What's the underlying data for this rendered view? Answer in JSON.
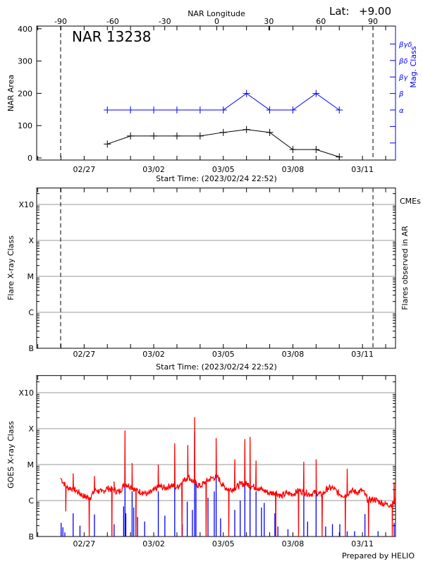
{
  "header": {
    "lat_label": "Lat:",
    "lat_value": "+9.00"
  },
  "footer": "Prepared by HELIO",
  "chart_data": [
    {
      "type": "line",
      "title": "NAR 13238",
      "xlabel": "Start Time: (2023/02/24 22:52)",
      "xlim": [
        "2023-02-24T22:52",
        "2023-03-12T10:30"
      ],
      "x_ticklabels": [
        "02/27",
        "03/02",
        "03/05",
        "03/08",
        "03/11"
      ],
      "top_axis": {
        "label": "NAR Longitude",
        "ticks": [
          "-90",
          "-60",
          "-30",
          "0",
          "30",
          "60",
          "90"
        ]
      },
      "limb_times": [
        "2023-02-25T23:40",
        "2023-03-11T10:52"
      ],
      "ylabel": "NAR Area",
      "ylim": [
        0,
        400
      ],
      "yticks": [
        "0",
        "100",
        "200",
        "300",
        "400"
      ],
      "y2label": "Mag. Class",
      "y2_ticklabels": [
        "",
        "",
        "α",
        "β",
        "βγ",
        "βδ",
        "βγδ"
      ],
      "x": [
        "2023-02-28T00:00",
        "2023-03-01T00:00",
        "2023-03-02T00:00",
        "2023-03-03T00:00",
        "2023-03-04T00:00",
        "2023-03-05T00:00",
        "2023-03-06T00:00",
        "2023-03-07T00:00",
        "2023-03-08T00:00",
        "2023-03-09T00:00",
        "2023-03-10T00:00"
      ],
      "series": [
        {
          "axis": "left",
          "color": "#000000",
          "values": [
            43,
            68,
            68,
            68,
            68,
            79,
            88,
            79,
            26,
            26,
            3
          ]
        },
        {
          "axis": "right",
          "color": "#0000ff",
          "values": [
            "α",
            "α",
            "α",
            "α",
            "α",
            "α",
            "β",
            "α",
            "α",
            "β",
            "α"
          ]
        }
      ],
      "grid": false
    },
    {
      "type": "scatter",
      "xlabel": "Start Time: (2023/02/24 22:52)",
      "xlim": [
        "2023-02-24T22:52",
        "2023-03-12T10:30"
      ],
      "x_ticklabels": [
        "02/27",
        "03/02",
        "03/05",
        "03/08",
        "03/11"
      ],
      "limb_times": [
        "2023-02-25T23:40",
        "2023-03-11T10:52"
      ],
      "ylabel": "Flare X-ray Class",
      "y2label": "Flares observed in AR",
      "annotation": "CMEs",
      "annotation_color": "#ff0000",
      "yscale": "log",
      "ylim": [
        1e-07,
        0.003
      ],
      "ytick_values": [
        1e-07,
        1e-06,
        1e-05,
        0.0001,
        0.001
      ],
      "yticks": [
        "B",
        "C",
        "M",
        "X",
        "X10"
      ],
      "flares": [],
      "grid": true
    },
    {
      "type": "line",
      "xlim": [
        "2023-02-24T22:52",
        "2023-03-12T10:30"
      ],
      "x_ticklabels": [
        "02/27",
        "03/02",
        "03/05",
        "03/08",
        "03/11"
      ],
      "ylabel": "GOES X-ray Class",
      "yscale": "log",
      "ylim": [
        1e-07,
        0.003
      ],
      "ytick_values": [
        1e-07,
        1e-06,
        1e-05,
        0.0001,
        0.001
      ],
      "yticks": [
        "B",
        "C",
        "M",
        "X",
        "X10"
      ],
      "grid": true,
      "series": [
        {
          "color": "#ff0000",
          "baseline": [
            [
              "2023-02-25T23:40",
              4.2e-06
            ],
            [
              "2023-02-26T06:00",
              2.3e-06
            ],
            [
              "2023-02-26T12:00",
              2.2e-06
            ],
            [
              "2023-02-26T18:00",
              1.7e-06
            ],
            [
              "2023-02-27T00:00",
              1.3e-06
            ],
            [
              "2023-02-27T06:00",
              1.2e-06
            ],
            [
              "2023-02-27T12:00",
              2e-06
            ],
            [
              "2023-02-27T18:00",
              1.7e-06
            ],
            [
              "2023-02-28T00:00",
              2.2e-06
            ],
            [
              "2023-02-28T06:00",
              2e-06
            ],
            [
              "2023-02-28T12:00",
              1.7e-06
            ],
            [
              "2023-02-28T18:00",
              2.9e-06
            ],
            [
              "2023-03-01T00:00",
              2.5e-06
            ],
            [
              "2023-03-01T06:00",
              1.9e-06
            ],
            [
              "2023-03-01T12:00",
              1.7e-06
            ],
            [
              "2023-03-01T18:00",
              1.5e-06
            ],
            [
              "2023-03-02T00:00",
              1.9e-06
            ],
            [
              "2023-03-02T06:00",
              2.5e-06
            ],
            [
              "2023-03-02T12:00",
              2.2e-06
            ],
            [
              "2023-03-02T18:00",
              2.7e-06
            ],
            [
              "2023-03-03T00:00",
              2.3e-06
            ],
            [
              "2023-03-03T06:00",
              3.4e-06
            ],
            [
              "2023-03-03T12:00",
              4.6e-06
            ],
            [
              "2023-03-03T18:00",
              3.1e-06
            ],
            [
              "2023-03-04T00:00",
              2.5e-06
            ],
            [
              "2023-03-04T06:00",
              3.4e-06
            ],
            [
              "2023-03-04T12:00",
              4.2e-06
            ],
            [
              "2023-03-04T18:00",
              4.6e-06
            ],
            [
              "2023-03-05T00:00",
              2.5e-06
            ],
            [
              "2023-03-05T06:00",
              2e-06
            ],
            [
              "2023-03-05T12:00",
              2.2e-06
            ],
            [
              "2023-03-05T18:00",
              2.9e-06
            ],
            [
              "2023-03-06T00:00",
              2.9e-06
            ],
            [
              "2023-03-06T06:00",
              2.5e-06
            ],
            [
              "2023-03-06T12:00",
              2.2e-06
            ],
            [
              "2023-03-06T18:00",
              1.9e-06
            ],
            [
              "2023-03-07T00:00",
              1.6e-06
            ],
            [
              "2023-03-07T06:00",
              1.7e-06
            ],
            [
              "2023-03-07T12:00",
              1.3e-06
            ],
            [
              "2023-03-07T18:00",
              1.6e-06
            ],
            [
              "2023-03-08T00:00",
              1.5e-06
            ],
            [
              "2023-03-08T06:00",
              1.9e-06
            ],
            [
              "2023-03-08T12:00",
              1.7e-06
            ],
            [
              "2023-03-08T18:00",
              1.5e-06
            ],
            [
              "2023-03-09T00:00",
              1.7e-06
            ],
            [
              "2023-03-09T06:00",
              1.4e-06
            ],
            [
              "2023-03-09T12:00",
              2.2e-06
            ],
            [
              "2023-03-09T18:00",
              2.2e-06
            ],
            [
              "2023-03-10T00:00",
              1.5e-06
            ],
            [
              "2023-03-10T06:00",
              1.4e-06
            ],
            [
              "2023-03-10T12:00",
              1.9e-06
            ],
            [
              "2023-03-10T18:00",
              1.7e-06
            ],
            [
              "2023-03-11T00:00",
              1.9e-06
            ],
            [
              "2023-03-11T06:00",
              1e-06
            ],
            [
              "2023-03-11T12:00",
              1.1e-06
            ],
            [
              "2023-03-11T18:00",
              9e-07
            ],
            [
              "2023-03-12T00:00",
              8e-07
            ],
            [
              "2023-03-12T06:00",
              7.5e-07
            ],
            [
              "2023-03-12T10:30",
              1e-06
            ]
          ],
          "peaks": [
            [
              "2023-02-26T12:38",
              5.7e-06
            ],
            [
              "2023-02-27T10:40",
              4.8e-06
            ],
            [
              "2023-02-28T07:00",
              3.4e-06
            ],
            [
              "2023-02-28T18:17",
              8.9e-05
            ],
            [
              "2023-03-01T01:38",
              1.1e-05
            ],
            [
              "2023-03-02T04:44",
              1e-05
            ],
            [
              "2023-03-02T21:42",
              3.9e-05
            ],
            [
              "2023-03-03T11:15",
              3.5e-05
            ],
            [
              "2023-03-03T18:19",
              0.00021
            ],
            [
              "2023-03-04T16:36",
              5.5e-05
            ],
            [
              "2023-03-05T11:50",
              1.4e-05
            ],
            [
              "2023-03-05T22:16",
              5.1e-05
            ],
            [
              "2023-03-06T03:39",
              5.9e-05
            ],
            [
              "2023-03-06T09:52",
              1.3e-05
            ],
            [
              "2023-03-08T11:17",
              1.2e-05
            ],
            [
              "2023-03-09T00:00",
              1.4e-05
            ],
            [
              "2023-03-10T08:11",
              7.7e-06
            ],
            [
              "2023-03-12T08:45",
              3.2e-06
            ]
          ],
          "dropouts": [
            [
              "2023-02-26T05:00",
              5e-07
            ],
            [
              "2023-02-27T05:17",
              1e-07
            ],
            [
              "2023-02-28T04:44",
              1e-07
            ],
            [
              "2023-03-01T05:34",
              1e-07
            ],
            [
              "2023-03-03T05:18",
              1e-07
            ],
            [
              "2023-03-04T06:10",
              1e-07
            ],
            [
              "2023-03-05T05:37",
              1e-07
            ],
            [
              "2023-03-07T06:12",
              1e-07
            ],
            [
              "2023-03-08T05:54",
              1e-07
            ],
            [
              "2023-03-09T06:12",
              1e-07
            ],
            [
              "2023-03-10T06:12",
              1e-07
            ],
            [
              "2023-03-11T06:13",
              1e-07
            ],
            [
              "2023-03-12T06:47",
              1e-07
            ]
          ]
        },
        {
          "color": "#0000ff",
          "points": [
            [
              "2023-02-26T00:12",
              2.4e-07
            ],
            [
              "2023-02-26T02:00",
              1.8e-07
            ],
            [
              "2023-02-26T04:00",
              1.3e-07
            ],
            [
              "2023-02-26T12:38",
              4.4e-07
            ],
            [
              "2023-02-26T19:41",
              2e-07
            ],
            [
              "2023-02-27T10:40",
              4.1e-07
            ],
            [
              "2023-02-28T04:44",
              1.8e-07
            ],
            [
              "2023-02-28T07:00",
              2.2e-07
            ],
            [
              "2023-02-28T16:52",
              6.9e-07
            ],
            [
              "2023-02-28T18:17",
              2.2e-05
            ],
            [
              "2023-02-28T19:08",
              4.4e-07
            ],
            [
              "2023-03-01T01:38",
              1.8e-06
            ],
            [
              "2023-03-01T03:19",
              6.4e-07
            ],
            [
              "2023-03-01T05:34",
              7.4e-07
            ],
            [
              "2023-03-01T07:16",
              3.5e-07
            ],
            [
              "2023-03-01T14:37",
              2.6e-07
            ],
            [
              "2023-03-02T04:44",
              1.8e-06
            ],
            [
              "2023-03-02T11:31",
              3.8e-07
            ],
            [
              "2023-03-02T21:42",
              8.2e-06
            ],
            [
              "2023-03-03T05:36",
              2.2e-07
            ],
            [
              "2023-03-03T10:41",
              9.3e-07
            ],
            [
              "2023-03-03T16:02",
              5.5e-07
            ],
            [
              "2023-03-03T18:19",
              7.9e-05
            ],
            [
              "2023-03-03T19:42",
              2.9e-06
            ],
            [
              "2023-03-04T08:08",
              1.2e-06
            ],
            [
              "2023-03-04T14:38",
              1.8e-06
            ],
            [
              "2023-03-04T16:36",
              1e-05
            ],
            [
              "2023-03-04T21:09",
              3.2e-07
            ],
            [
              "2023-03-05T11:50",
              5.5e-07
            ],
            [
              "2023-03-05T17:28",
              1e-06
            ],
            [
              "2023-03-05T22:16",
              1.3e-05
            ],
            [
              "2023-03-06T03:39",
              1.7e-05
            ],
            [
              "2023-03-06T09:52",
              1.8e-06
            ],
            [
              "2023-03-06T15:30",
              6.4e-07
            ],
            [
              "2023-03-06T18:19",
              8.6e-07
            ],
            [
              "2023-03-07T05:20",
              4.4e-07
            ],
            [
              "2023-03-07T08:27",
              1.9e-07
            ],
            [
              "2023-03-07T18:53",
              1.6e-07
            ],
            [
              "2023-03-08T11:17",
              1.8e-06
            ],
            [
              "2023-03-08T15:14",
              2.6e-07
            ],
            [
              "2023-03-09T00:00",
              1.8e-06
            ],
            [
              "2023-03-09T09:52",
              1.9e-07
            ],
            [
              "2023-03-09T16:55",
              2.2e-07
            ],
            [
              "2023-03-10T00:33",
              2.2e-07
            ],
            [
              "2023-03-10T08:11",
              1.4e-07
            ],
            [
              "2023-03-10T15:49",
              1.4e-07
            ],
            [
              "2023-03-11T02:33",
              4.2e-07
            ],
            [
              "2023-03-11T16:06",
              1.4e-07
            ],
            [
              "2023-03-12T08:45",
              2.4e-07
            ]
          ]
        }
      ]
    }
  ]
}
